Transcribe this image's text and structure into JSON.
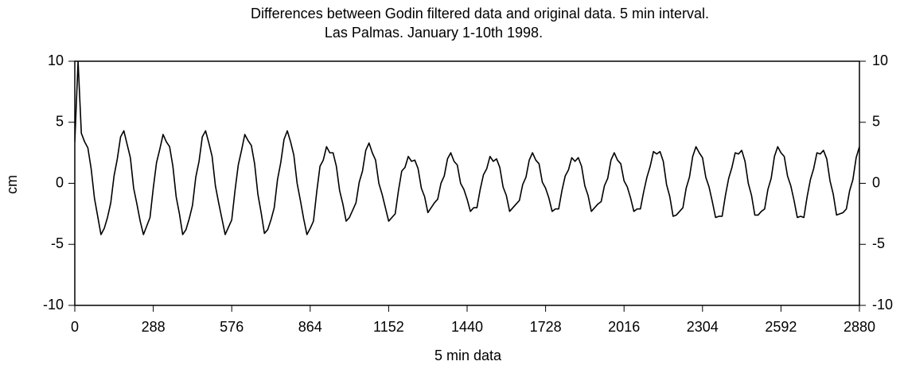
{
  "chart_data": {
    "type": "line",
    "title": "Differences between Godin filtered data and original data. 5 min interval.",
    "subtitle": "Las Palmas. January 1-10th 1998.",
    "xlabel": "5 min data",
    "ylabel": "cm",
    "xlim": [
      0,
      2880
    ],
    "ylim": [
      -10,
      10
    ],
    "xticks": [
      0,
      288,
      576,
      864,
      1152,
      1440,
      1728,
      2016,
      2304,
      2592,
      2880
    ],
    "yticks": [
      -10,
      -5,
      0,
      5,
      10
    ],
    "color": "#000000",
    "x": [
      0,
      12,
      24,
      36,
      48,
      60,
      72,
      84,
      96,
      108,
      120,
      132,
      144,
      156,
      168,
      180,
      192,
      204,
      216,
      228,
      240,
      252,
      264,
      276,
      288,
      300,
      312,
      324,
      336,
      348,
      360,
      372,
      384,
      396,
      408,
      420,
      432,
      444,
      456,
      468,
      480,
      492,
      504,
      516,
      528,
      540,
      552,
      564,
      576,
      588,
      600,
      612,
      624,
      636,
      648,
      660,
      672,
      684,
      696,
      708,
      720,
      732,
      744,
      756,
      768,
      780,
      792,
      804,
      816,
      828,
      840,
      852,
      864,
      876,
      888,
      900,
      912,
      924,
      936,
      948,
      960,
      972,
      984,
      996,
      1008,
      1020,
      1032,
      1044,
      1056,
      1068,
      1080,
      1092,
      1104,
      1116,
      1128,
      1140,
      1152,
      1164,
      1176,
      1188,
      1200,
      1212,
      1224,
      1236,
      1248,
      1260,
      1272,
      1284,
      1296,
      1308,
      1320,
      1332,
      1344,
      1356,
      1368,
      1380,
      1392,
      1404,
      1416,
      1428,
      1440,
      1452,
      1464,
      1476,
      1488,
      1500,
      1512,
      1524,
      1536,
      1548,
      1560,
      1572,
      1584,
      1596,
      1608,
      1620,
      1632,
      1644,
      1656,
      1668,
      1680,
      1692,
      1704,
      1716,
      1728,
      1740,
      1752,
      1764,
      1776,
      1788,
      1800,
      1812,
      1824,
      1836,
      1848,
      1860,
      1872,
      1884,
      1896,
      1908,
      1920,
      1932,
      1944,
      1956,
      1968,
      1980,
      1992,
      2004,
      2016,
      2028,
      2040,
      2052,
      2064,
      2076,
      2088,
      2100,
      2112,
      2124,
      2136,
      2148,
      2160,
      2172,
      2184,
      2196,
      2208,
      2220,
      2232,
      2244,
      2256,
      2268,
      2280,
      2292,
      2304,
      2316,
      2328,
      2340,
      2352,
      2364,
      2376,
      2388,
      2400,
      2412,
      2424,
      2436,
      2448,
      2460,
      2472,
      2484,
      2496,
      2508,
      2520,
      2532,
      2544,
      2556,
      2568,
      2580,
      2592,
      2604,
      2616,
      2628,
      2640,
      2652,
      2664,
      2676,
      2688,
      2700,
      2712,
      2724,
      2736,
      2748,
      2760,
      2772,
      2784,
      2796,
      2808,
      2820,
      2832,
      2844,
      2856,
      2868,
      2880
    ],
    "values": [
      3.4,
      10,
      4.1,
      3.4,
      2.9,
      1.2,
      -1.2,
      -2.7,
      -4.2,
      -3.7,
      -2.8,
      -1.6,
      0.6,
      2.0,
      3.8,
      4.3,
      3.2,
      2.1,
      -0.4,
      -1.7,
      -3.1,
      -4.2,
      -3.5,
      -2.8,
      -0.4,
      1.7,
      2.8,
      4.0,
      3.4,
      3.0,
      1.4,
      -1.1,
      -2.5,
      -4.2,
      -3.8,
      -2.9,
      -1.8,
      0.5,
      1.8,
      3.8,
      4.3,
      3.3,
      2.2,
      -0.2,
      -1.6,
      -2.9,
      -4.2,
      -3.6,
      -3.0,
      -0.6,
      1.5,
      2.7,
      4.0,
      3.5,
      3.1,
      1.6,
      -0.9,
      -2.4,
      -4.1,
      -3.8,
      -3.0,
      -2.0,
      0.3,
      1.7,
      3.6,
      4.3,
      3.4,
      2.3,
      0.0,
      -1.4,
      -2.9,
      -4.2,
      -3.7,
      -3.1,
      -0.7,
      1.4,
      1.9,
      3.0,
      2.5,
      2.5,
      1.4,
      -0.6,
      -1.7,
      -3.1,
      -2.8,
      -2.2,
      -1.6,
      0.1,
      1.0,
      2.7,
      3.3,
      2.5,
      1.9,
      0.0,
      -0.9,
      -2.0,
      -3.1,
      -2.8,
      -2.5,
      -0.6,
      1.0,
      1.3,
      2.2,
      1.8,
      1.9,
      1.2,
      -0.4,
      -1.1,
      -2.4,
      -2.0,
      -1.6,
      -1.3,
      0.0,
      0.6,
      2.0,
      2.5,
      1.8,
      1.5,
      0.0,
      -0.5,
      -1.3,
      -2.3,
      -2.0,
      -2.0,
      -0.5,
      0.7,
      1.2,
      2.2,
      1.8,
      2.0,
      1.3,
      -0.3,
      -1.0,
      -2.3,
      -2.0,
      -1.7,
      -1.4,
      -0.1,
      0.5,
      1.9,
      2.5,
      1.9,
      1.6,
      0.1,
      -0.4,
      -1.2,
      -2.3,
      -2.1,
      -2.1,
      -0.6,
      0.6,
      1.1,
      2.1,
      1.8,
      2.1,
      1.4,
      -0.2,
      -1.0,
      -2.3,
      -2.0,
      -1.7,
      -1.5,
      -0.2,
      0.4,
      1.9,
      2.5,
      1.9,
      1.6,
      0.2,
      -0.3,
      -1.2,
      -2.3,
      -2.1,
      -2.1,
      -0.7,
      0.5,
      1.4,
      2.6,
      2.4,
      2.6,
      1.8,
      -0.1,
      -1.1,
      -2.7,
      -2.6,
      -2.3,
      -2.0,
      -0.4,
      0.5,
      2.2,
      3.0,
      2.5,
      2.1,
      0.5,
      -0.3,
      -1.5,
      -2.8,
      -2.7,
      -2.7,
      -1.0,
      0.4,
      1.3,
      2.5,
      2.4,
      2.7,
      1.8,
      0.0,
      -1.0,
      -2.6,
      -2.6,
      -2.3,
      -2.1,
      -0.5,
      0.4,
      2.2,
      3.0,
      2.5,
      2.2,
      0.6,
      -0.2,
      -1.4,
      -2.8,
      -2.7,
      -2.8,
      -1.1,
      0.3,
      1.2,
      2.5,
      2.4,
      2.7,
      2.0,
      0.2,
      -0.9,
      -2.6,
      -2.5,
      -2.4,
      -2.1,
      -0.6,
      0.3,
      2.1,
      3.0
    ]
  }
}
